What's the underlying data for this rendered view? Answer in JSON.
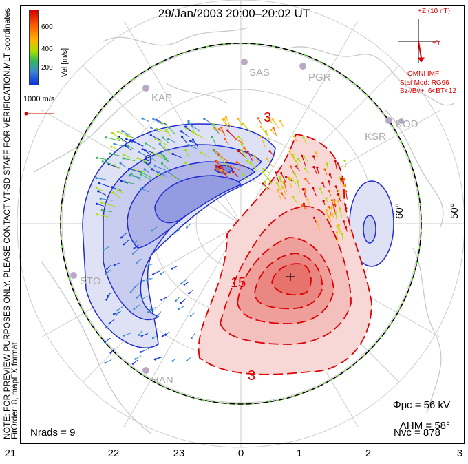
{
  "title": "29/Jan/2003 20:00–20:02 UT",
  "colorbar": {
    "label": "Vel [m/s]",
    "ticks": [
      "600",
      "400",
      "200"
    ],
    "colors": [
      "#d40000",
      "#ff5a00",
      "#ffb400",
      "#a8e000",
      "#33b85a",
      "#3a8acc",
      "#0a30e0"
    ]
  },
  "coord_label": "MLT coordinates",
  "vector_scale": "1000 m/s",
  "imf": {
    "z_label": "+Z (10 nT)",
    "y_label": "+Y",
    "source": "OMNI IMF",
    "model_line1": "Stat Mod: RG96",
    "model_line2": "Bz-/By+, 6<BT<12"
  },
  "radars": [
    {
      "code": "SAS"
    },
    {
      "code": "PGR"
    },
    {
      "code": "KAP"
    },
    {
      "code": "KSR"
    },
    {
      "code": "KOD"
    },
    {
      "code": "STO"
    },
    {
      "code": "HAN"
    }
  ],
  "latitude_labels": [
    "60°",
    "50°"
  ],
  "contour_labels": [
    "9",
    "3",
    "15",
    "3"
  ],
  "notes": {
    "preview": "NOTE: FOR PREVIEW PURPOSES ONLY. PLEASE CONTACT VT-SD STAFF FOR VERIFICATION.",
    "fit": "FitOrder: 8, mapEX format"
  },
  "stats": {
    "phi_pc": "Φpc = 56 kV",
    "lambda_hm": "ΛHM = 58°",
    "n_vc": "Nvc = 878",
    "n_rads": "Nrads = 9"
  },
  "mlt_axis": [
    "21",
    "22",
    "23",
    "0",
    "1",
    "2",
    "3"
  ],
  "colors": {
    "negative_cell": "#3b4fcf",
    "positive_cell": "#e03030",
    "boundary": "#66cc33"
  }
}
